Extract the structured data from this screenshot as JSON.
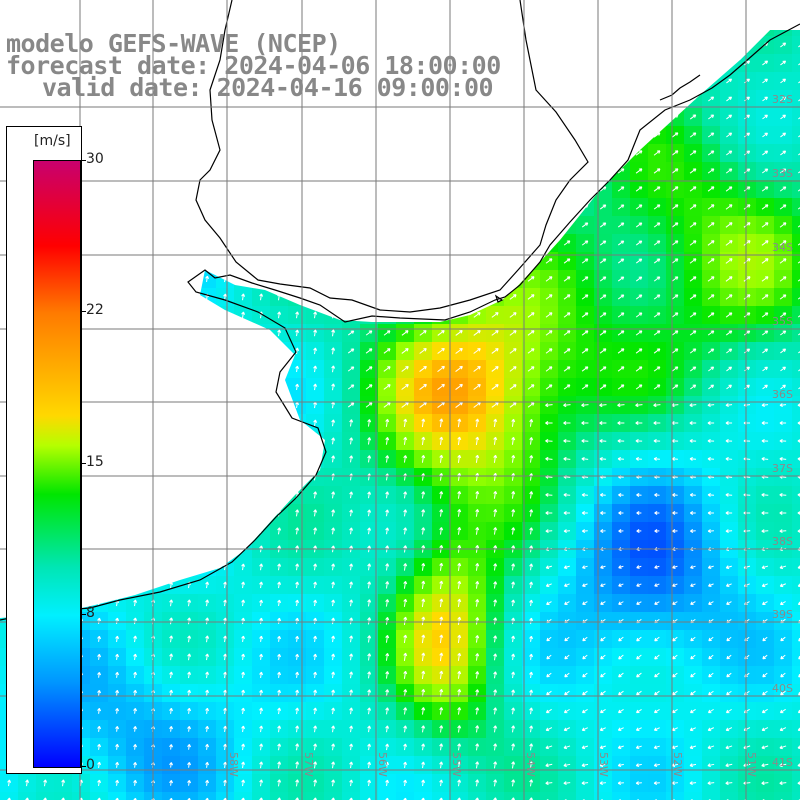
{
  "header": {
    "line1": "modelo GEFS-WAVE (NCEP)",
    "line2": "forecast date: 2024-04-06 18:00:00",
    "line3": "valid date: 2024-04-16 09:00:00"
  },
  "colorbar": {
    "unit": "[m/s]",
    "ticks": [
      "30",
      "22",
      "15",
      "8",
      "0"
    ],
    "colors": [
      "#c8006e",
      "#ff0000",
      "#ff7a00",
      "#ffd800",
      "#00e600",
      "#00f0ff",
      "#0096ff",
      "#0000ff"
    ]
  },
  "map": {
    "lat_labels": [
      "32S",
      "33S",
      "34S",
      "35S",
      "36S",
      "37S",
      "38S",
      "39S",
      "40S",
      "41S"
    ],
    "lon_labels": [
      "58W",
      "57W",
      "56W",
      "55W",
      "54W",
      "53W",
      "52W",
      "51W"
    ],
    "land_color": "#ffffff",
    "grid_color": "#7a7a7a",
    "coast_color": "#000000"
  }
}
